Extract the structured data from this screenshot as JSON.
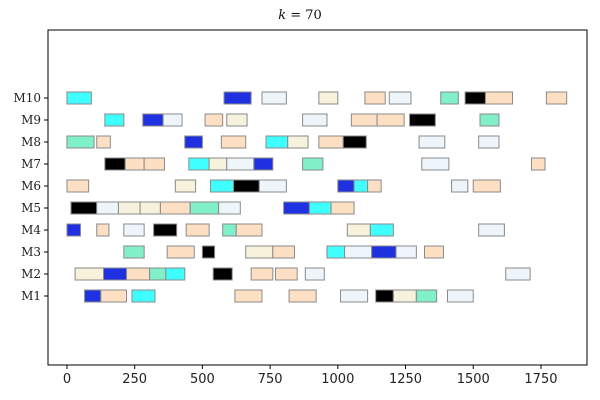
{
  "chart_data": {
    "type": "gantt",
    "title": "k = 70",
    "title_parts": {
      "var": "k",
      "rest": " =  70"
    },
    "xlabel": "",
    "ylabel": "",
    "xlim": [
      -70,
      1920
    ],
    "xticks": [
      0,
      250,
      500,
      750,
      1000,
      1250,
      1500,
      1750
    ],
    "machines": [
      "M1",
      "M2",
      "M3",
      "M4",
      "M5",
      "M6",
      "M7",
      "M8",
      "M9",
      "M10"
    ],
    "legend": "none",
    "grid": false,
    "palette": {
      "cyan": "#40ffff",
      "blue": "#1f30e0",
      "black": "#000000",
      "aquamarine": "#80f0c8",
      "peach": "#fde0c4",
      "beige": "#f6f2dc",
      "aliceblue": "#eef5fb"
    },
    "tasks": [
      {
        "machine": "M1",
        "start": 65,
        "end": 125,
        "color": "blue"
      },
      {
        "machine": "M1",
        "start": 125,
        "end": 220,
        "color": "peach"
      },
      {
        "machine": "M1",
        "start": 240,
        "end": 325,
        "color": "cyan"
      },
      {
        "machine": "M1",
        "start": 620,
        "end": 720,
        "color": "peach"
      },
      {
        "machine": "M1",
        "start": 820,
        "end": 920,
        "color": "peach"
      },
      {
        "machine": "M1",
        "start": 1010,
        "end": 1110,
        "color": "aliceblue"
      },
      {
        "machine": "M1",
        "start": 1140,
        "end": 1205,
        "color": "black"
      },
      {
        "machine": "M1",
        "start": 1205,
        "end": 1290,
        "color": "beige"
      },
      {
        "machine": "M1",
        "start": 1290,
        "end": 1365,
        "color": "aquamarine"
      },
      {
        "machine": "M1",
        "start": 1405,
        "end": 1500,
        "color": "aliceblue"
      },
      {
        "machine": "M2",
        "start": 30,
        "end": 135,
        "color": "beige"
      },
      {
        "machine": "M2",
        "start": 135,
        "end": 220,
        "color": "blue"
      },
      {
        "machine": "M2",
        "start": 220,
        "end": 305,
        "color": "peach"
      },
      {
        "machine": "M2",
        "start": 305,
        "end": 365,
        "color": "aquamarine"
      },
      {
        "machine": "M2",
        "start": 365,
        "end": 435,
        "color": "cyan"
      },
      {
        "machine": "M2",
        "start": 540,
        "end": 610,
        "color": "black"
      },
      {
        "machine": "M2",
        "start": 680,
        "end": 760,
        "color": "peach"
      },
      {
        "machine": "M2",
        "start": 770,
        "end": 850,
        "color": "peach"
      },
      {
        "machine": "M2",
        "start": 880,
        "end": 950,
        "color": "aliceblue"
      },
      {
        "machine": "M2",
        "start": 1620,
        "end": 1710,
        "color": "aliceblue"
      },
      {
        "machine": "M3",
        "start": 210,
        "end": 285,
        "color": "aquamarine"
      },
      {
        "machine": "M3",
        "start": 370,
        "end": 470,
        "color": "peach"
      },
      {
        "machine": "M3",
        "start": 500,
        "end": 545,
        "color": "black"
      },
      {
        "machine": "M3",
        "start": 660,
        "end": 760,
        "color": "beige"
      },
      {
        "machine": "M3",
        "start": 760,
        "end": 840,
        "color": "peach"
      },
      {
        "machine": "M3",
        "start": 960,
        "end": 1025,
        "color": "cyan"
      },
      {
        "machine": "M3",
        "start": 1025,
        "end": 1125,
        "color": "aliceblue"
      },
      {
        "machine": "M3",
        "start": 1125,
        "end": 1215,
        "color": "blue"
      },
      {
        "machine": "M3",
        "start": 1215,
        "end": 1290,
        "color": "aliceblue"
      },
      {
        "machine": "M3",
        "start": 1320,
        "end": 1390,
        "color": "peach"
      },
      {
        "machine": "M4",
        "start": 0,
        "end": 50,
        "color": "blue"
      },
      {
        "machine": "M4",
        "start": 110,
        "end": 155,
        "color": "peach"
      },
      {
        "machine": "M4",
        "start": 210,
        "end": 285,
        "color": "aliceblue"
      },
      {
        "machine": "M4",
        "start": 320,
        "end": 405,
        "color": "black"
      },
      {
        "machine": "M4",
        "start": 440,
        "end": 525,
        "color": "peach"
      },
      {
        "machine": "M4",
        "start": 575,
        "end": 625,
        "color": "aquamarine"
      },
      {
        "machine": "M4",
        "start": 625,
        "end": 720,
        "color": "peach"
      },
      {
        "machine": "M4",
        "start": 1035,
        "end": 1120,
        "color": "beige"
      },
      {
        "machine": "M4",
        "start": 1120,
        "end": 1205,
        "color": "cyan"
      },
      {
        "machine": "M4",
        "start": 1520,
        "end": 1615,
        "color": "aliceblue"
      },
      {
        "machine": "M5",
        "start": 15,
        "end": 110,
        "color": "black"
      },
      {
        "machine": "M5",
        "start": 110,
        "end": 190,
        "color": "aliceblue"
      },
      {
        "machine": "M5",
        "start": 190,
        "end": 270,
        "color": "beige"
      },
      {
        "machine": "M5",
        "start": 270,
        "end": 345,
        "color": "beige"
      },
      {
        "machine": "M5",
        "start": 345,
        "end": 455,
        "color": "peach"
      },
      {
        "machine": "M5",
        "start": 455,
        "end": 560,
        "color": "aquamarine"
      },
      {
        "machine": "M5",
        "start": 560,
        "end": 640,
        "color": "aliceblue"
      },
      {
        "machine": "M5",
        "start": 800,
        "end": 895,
        "color": "blue"
      },
      {
        "machine": "M5",
        "start": 895,
        "end": 975,
        "color": "cyan"
      },
      {
        "machine": "M5",
        "start": 975,
        "end": 1060,
        "color": "peach"
      },
      {
        "machine": "M6",
        "start": 0,
        "end": 80,
        "color": "peach"
      },
      {
        "machine": "M6",
        "start": 400,
        "end": 475,
        "color": "beige"
      },
      {
        "machine": "M6",
        "start": 530,
        "end": 615,
        "color": "cyan"
      },
      {
        "machine": "M6",
        "start": 615,
        "end": 710,
        "color": "black"
      },
      {
        "machine": "M6",
        "start": 710,
        "end": 810,
        "color": "aliceblue"
      },
      {
        "machine": "M6",
        "start": 1000,
        "end": 1060,
        "color": "blue"
      },
      {
        "machine": "M6",
        "start": 1060,
        "end": 1110,
        "color": "cyan"
      },
      {
        "machine": "M6",
        "start": 1110,
        "end": 1160,
        "color": "peach"
      },
      {
        "machine": "M6",
        "start": 1420,
        "end": 1480,
        "color": "aliceblue"
      },
      {
        "machine": "M6",
        "start": 1500,
        "end": 1600,
        "color": "peach"
      },
      {
        "machine": "M7",
        "start": 140,
        "end": 215,
        "color": "black"
      },
      {
        "machine": "M7",
        "start": 215,
        "end": 285,
        "color": "peach"
      },
      {
        "machine": "M7",
        "start": 285,
        "end": 360,
        "color": "peach"
      },
      {
        "machine": "M7",
        "start": 450,
        "end": 525,
        "color": "cyan"
      },
      {
        "machine": "M7",
        "start": 525,
        "end": 590,
        "color": "beige"
      },
      {
        "machine": "M7",
        "start": 590,
        "end": 690,
        "color": "aliceblue"
      },
      {
        "machine": "M7",
        "start": 690,
        "end": 760,
        "color": "blue"
      },
      {
        "machine": "M7",
        "start": 870,
        "end": 945,
        "color": "aquamarine"
      },
      {
        "machine": "M7",
        "start": 1310,
        "end": 1410,
        "color": "aliceblue"
      },
      {
        "machine": "M7",
        "start": 1715,
        "end": 1765,
        "color": "peach"
      },
      {
        "machine": "M8",
        "start": 0,
        "end": 100,
        "color": "aquamarine"
      },
      {
        "machine": "M8",
        "start": 110,
        "end": 160,
        "color": "peach"
      },
      {
        "machine": "M8",
        "start": 435,
        "end": 500,
        "color": "blue"
      },
      {
        "machine": "M8",
        "start": 570,
        "end": 660,
        "color": "peach"
      },
      {
        "machine": "M8",
        "start": 735,
        "end": 815,
        "color": "cyan"
      },
      {
        "machine": "M8",
        "start": 815,
        "end": 890,
        "color": "beige"
      },
      {
        "machine": "M8",
        "start": 930,
        "end": 1020,
        "color": "peach"
      },
      {
        "machine": "M8",
        "start": 1020,
        "end": 1105,
        "color": "black"
      },
      {
        "machine": "M8",
        "start": 1300,
        "end": 1395,
        "color": "aliceblue"
      },
      {
        "machine": "M8",
        "start": 1520,
        "end": 1595,
        "color": "aliceblue"
      },
      {
        "machine": "M9",
        "start": 140,
        "end": 210,
        "color": "cyan"
      },
      {
        "machine": "M9",
        "start": 280,
        "end": 355,
        "color": "blue"
      },
      {
        "machine": "M9",
        "start": 355,
        "end": 425,
        "color": "aliceblue"
      },
      {
        "machine": "M9",
        "start": 510,
        "end": 575,
        "color": "peach"
      },
      {
        "machine": "M9",
        "start": 590,
        "end": 665,
        "color": "beige"
      },
      {
        "machine": "M9",
        "start": 870,
        "end": 960,
        "color": "aliceblue"
      },
      {
        "machine": "M9",
        "start": 1050,
        "end": 1145,
        "color": "peach"
      },
      {
        "machine": "M9",
        "start": 1145,
        "end": 1245,
        "color": "peach"
      },
      {
        "machine": "M9",
        "start": 1265,
        "end": 1360,
        "color": "black"
      },
      {
        "machine": "M9",
        "start": 1525,
        "end": 1595,
        "color": "aquamarine"
      },
      {
        "machine": "M10",
        "start": 0,
        "end": 90,
        "color": "cyan"
      },
      {
        "machine": "M10",
        "start": 580,
        "end": 680,
        "color": "blue"
      },
      {
        "machine": "M10",
        "start": 720,
        "end": 810,
        "color": "aliceblue"
      },
      {
        "machine": "M10",
        "start": 930,
        "end": 1000,
        "color": "beige"
      },
      {
        "machine": "M10",
        "start": 1100,
        "end": 1175,
        "color": "peach"
      },
      {
        "machine": "M10",
        "start": 1190,
        "end": 1270,
        "color": "aliceblue"
      },
      {
        "machine": "M10",
        "start": 1380,
        "end": 1445,
        "color": "aquamarine"
      },
      {
        "machine": "M10",
        "start": 1470,
        "end": 1545,
        "color": "black"
      },
      {
        "machine": "M10",
        "start": 1545,
        "end": 1645,
        "color": "peach"
      },
      {
        "machine": "M10",
        "start": 1770,
        "end": 1845,
        "color": "peach"
      }
    ]
  }
}
